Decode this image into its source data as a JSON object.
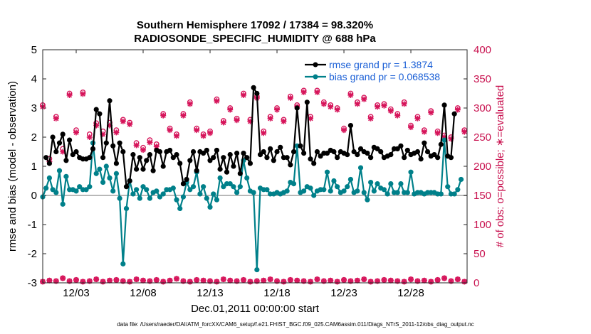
{
  "chart_data": {
    "type": "line",
    "title_line1": "Southern Hemisphere 17092 / 17384 = 98.320%",
    "title_line2": "RADIOSONDE_SPECIFIC_HUMIDITY @ 688 hPa",
    "xlabel": "Dec.01,2011 00:00:00 start",
    "ylabel_left": "rmse and bias (model - observation)",
    "ylabel_right": "# of obs: o=possible; ∗=evaluated",
    "ylim_left": [
      -3,
      5
    ],
    "ylim_right": [
      0,
      400
    ],
    "yticks_left": [
      "-3",
      "-2",
      "-1",
      "0",
      "1",
      "2",
      "3",
      "4",
      "5"
    ],
    "yticks_right": [
      "0",
      "50",
      "100",
      "150",
      "200",
      "250",
      "300",
      "350",
      "400"
    ],
    "xlim": [
      0.5,
      32.2
    ],
    "xticks": [
      {
        "x": 3,
        "label": "12/03"
      },
      {
        "x": 8,
        "label": "12/08"
      },
      {
        "x": 13,
        "label": "12/13"
      },
      {
        "x": 18,
        "label": "12/18"
      },
      {
        "x": 23,
        "label": "12/23"
      },
      {
        "x": 28,
        "label": "12/28"
      }
    ],
    "legend": [
      "rmse grand pr = 1.3874",
      "bias grand pr = 0.068538"
    ],
    "legend_location": "top-right",
    "series": [
      {
        "name": "rmse",
        "color": "#000000",
        "values": [
          1.3,
          1.1,
          2.0,
          1.5,
          1.8,
          2.1,
          1.2,
          1.9,
          1.4,
          1.5,
          1.3,
          1.25,
          1.25,
          1.3,
          1.6,
          2.95,
          2.8,
          1.3,
          1.8,
          3.25,
          1.7,
          1.1,
          1.8,
          1.5,
          0.3,
          0.5,
          1.4,
          0.9,
          1.3,
          0.9,
          1.2,
          1.4,
          0.85,
          1.55,
          1.5,
          1.0,
          1.5,
          1.55,
          1.3,
          1.4,
          1.1,
          0.4,
          0.55,
          1.2,
          1.5,
          0.85,
          1.5,
          1.45,
          1.55,
          1.2,
          1.3,
          1.55,
          0.9,
          1.3,
          0.8,
          1.4,
          1.0,
          1.45,
          0.75,
          1.45,
          1.3,
          1.1,
          3.7,
          3.5,
          1.4,
          1.5,
          1.3,
          1.6,
          1.2,
          1.5,
          1.65,
          1.3,
          1.3,
          1.05,
          1.5,
          3.0,
          1.7,
          1.45,
          3.2,
          1.25,
          1.1,
          1.5,
          1.35,
          1.45,
          1.45,
          1.55,
          1.5,
          1.3,
          1.5,
          1.45,
          1.4,
          2.4,
          1.5,
          1.4,
          1.6,
          1.5,
          1.45,
          1.3,
          1.65,
          1.6,
          1.5,
          1.3,
          1.35,
          1.4,
          1.6,
          1.6,
          1.7,
          1.3,
          1.55,
          1.4,
          1.45,
          1.5,
          1.25,
          1.8,
          1.5,
          1.35,
          1.4,
          1.3,
          1.75,
          3.1,
          1.35,
          1.3,
          2.8
        ]
      },
      {
        "name": "bias",
        "color": "#00808a",
        "values": [
          -0.05,
          0.25,
          0.6,
          0.2,
          0.1,
          0.85,
          -0.3,
          0.65,
          0.2,
          0.2,
          0.15,
          0.3,
          0.2,
          0.2,
          0.3,
          1.8,
          0.75,
          0.9,
          0.45,
          1.0,
          0.6,
          0.15,
          0.75,
          -0.1,
          -2.35,
          -0.45,
          0.5,
          0.05,
          0.2,
          -0.1,
          0.3,
          0.2,
          -0.1,
          0.1,
          0.15,
          -0.05,
          0.05,
          0.2,
          0.2,
          0.25,
          -0.15,
          -0.45,
          -0.05,
          0.45,
          0.2,
          0.3,
          0.8,
          0.05,
          0.3,
          -0.1,
          -0.4,
          0.05,
          -0.15,
          0.6,
          0.3,
          0.4,
          0.4,
          0.3,
          0.1,
          0.3,
          1.2,
          0.6,
          0.15,
          0.1,
          -2.55,
          0.25,
          0.2,
          0.2,
          0.05,
          0.05,
          0.1,
          0.05,
          0.1,
          0.15,
          0.45,
          0.4,
          1.7,
          0.1,
          0.15,
          0.3,
          0.25,
          0.0,
          0.15,
          0.2,
          0.2,
          0.8,
          0.15,
          0.5,
          0.3,
          0.1,
          0.15,
          0.3,
          0.55,
          0.1,
          0.15,
          0.95,
          0.1,
          -0.15,
          0.45,
          0.15,
          0.4,
          0.25,
          0.2,
          0.05,
          0.4,
          0.1,
          0.1,
          0.4,
          0.1,
          0.1,
          0.8,
          0.05,
          0.1,
          0.1,
          0.05,
          0.1,
          0.1,
          0.1,
          0.05,
          0.05,
          1.9,
          0.3,
          0.05,
          0.05,
          0.2,
          0.55
        ]
      }
    ],
    "rmse_x_spacing_days": 0.25,
    "rmse_x_start": 0.75,
    "bias_x_spacing_days": 0.25,
    "bias_x_start": 0.5,
    "obs_counts": {
      "marker_color": "#d6145a",
      "x_start": 0.5,
      "x_spacing_days": 0.5,
      "possible": [
        305,
        213,
        285,
        230,
        325,
        262,
        327,
        255,
        274,
        260,
        275,
        262,
        280,
        275,
        240,
        232,
        245,
        238,
        290,
        265,
        255,
        290,
        310,
        265,
        255,
        260,
        315,
        278,
        300,
        282,
        325,
        280,
        320,
        260,
        285,
        300,
        280,
        320,
        305,
        330,
        285,
        330,
        310,
        305,
        300,
        265,
        325,
        310,
        318,
        285,
        305,
        307,
        298,
        290,
        310,
        270,
        285,
        262,
        295,
        260,
        253,
        250,
        300,
        262
      ],
      "evaluated": [
        302,
        208,
        282,
        225,
        322,
        258,
        324,
        250,
        270,
        255,
        270,
        258,
        277,
        272,
        236,
        228,
        241,
        234,
        287,
        262,
        252,
        287,
        307,
        262,
        252,
        257,
        312,
        275,
        297,
        279,
        322,
        277,
        317,
        257,
        282,
        297,
        277,
        317,
        302,
        327,
        282,
        327,
        307,
        302,
        297,
        262,
        322,
        307,
        315,
        282,
        302,
        304,
        295,
        287,
        307,
        267,
        282,
        259,
        292,
        257,
        250,
        247,
        297,
        259
      ],
      "low_counts": [
        2,
        4,
        3,
        8,
        3,
        5,
        2,
        3,
        6,
        2,
        4,
        5,
        3,
        2,
        6,
        4,
        3,
        5,
        2,
        4,
        7,
        3,
        2,
        5,
        4,
        3,
        2,
        6,
        4,
        3,
        5,
        2,
        3,
        4,
        6,
        3,
        2,
        5,
        4,
        3,
        2,
        6,
        3,
        4,
        2,
        5,
        3,
        4,
        6,
        2,
        3,
        5,
        4,
        3,
        2,
        6,
        3,
        4,
        2,
        5,
        8,
        3,
        6,
        2
      ]
    }
  },
  "footer": "data file: /Users/raeder/DAI/ATM_forcXX/CAM6_setup/f.e21.FHIST_BGC.f09_025.CAM6assim.011/Diags_NTrS_2011-12/obs_diag_output.nc"
}
